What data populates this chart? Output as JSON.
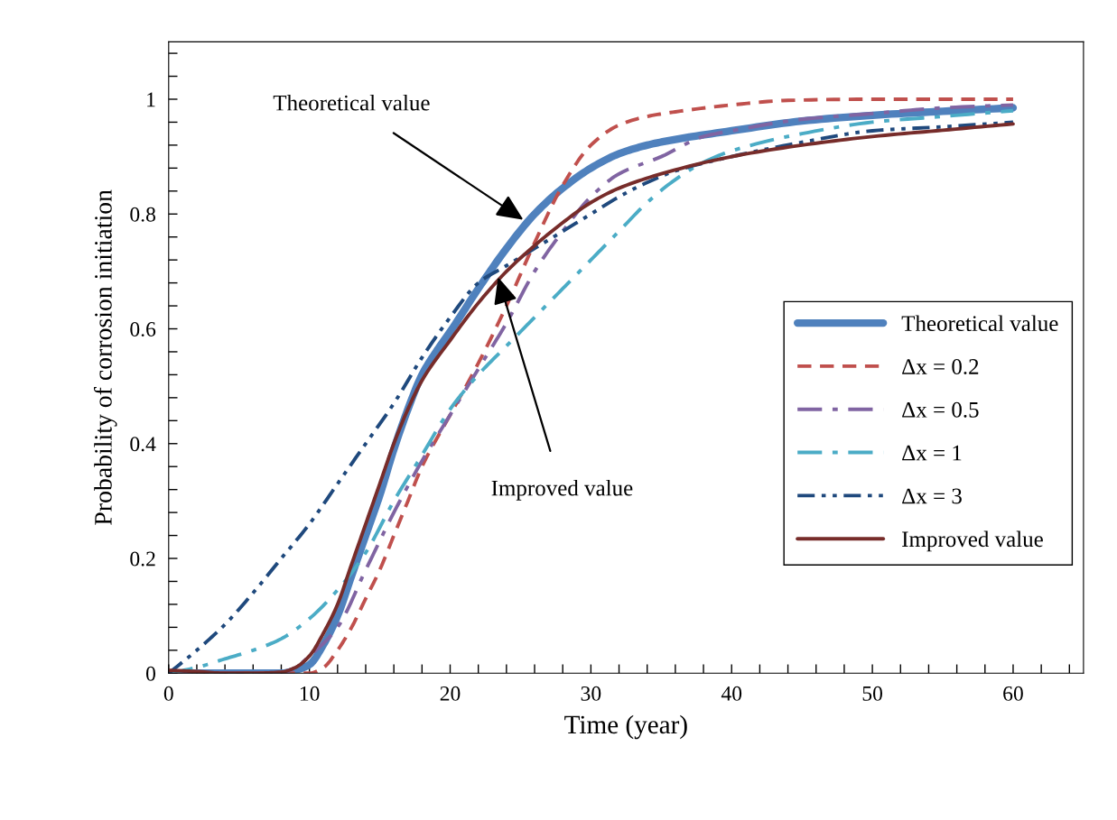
{
  "chart_data": {
    "type": "line",
    "xlabel": "Time (year)",
    "ylabel": "Probability of corrosion initiation",
    "xlim": [
      0,
      65
    ],
    "xticks": [
      0,
      10,
      20,
      30,
      40,
      50,
      60
    ],
    "ylim": [
      0,
      1.1
    ],
    "yticks": [
      0,
      0.2,
      0.4,
      0.6,
      0.8,
      1
    ],
    "grid": false,
    "legend": "right",
    "marker": "none",
    "series": [
      {
        "name": "Theoretical value",
        "color": "#4f81bd",
        "line_style": "solid",
        "x": [
          0,
          4,
          8,
          9,
          10,
          11,
          12,
          13,
          14,
          15,
          16,
          17,
          18,
          19,
          20,
          22,
          24,
          26,
          28,
          30,
          32,
          34,
          36,
          40,
          45,
          50,
          55,
          60
        ],
        "values": [
          0,
          0,
          0,
          0.005,
          0.015,
          0.05,
          0.1,
          0.17,
          0.24,
          0.31,
          0.39,
          0.46,
          0.52,
          0.56,
          0.595,
          0.67,
          0.74,
          0.8,
          0.845,
          0.88,
          0.905,
          0.92,
          0.93,
          0.945,
          0.962,
          0.972,
          0.979,
          0.985
        ]
      },
      {
        "name": "Δx = 0.2",
        "color": "#c0504d",
        "line_style": "dashed",
        "x": [
          0,
          8,
          10,
          11,
          12,
          13,
          14,
          15,
          16,
          17,
          18,
          20,
          22,
          24,
          26,
          28,
          30,
          32,
          34,
          36,
          40,
          44,
          50,
          60
        ],
        "values": [
          0,
          0,
          0,
          0.01,
          0.04,
          0.08,
          0.13,
          0.18,
          0.24,
          0.3,
          0.36,
          0.45,
          0.54,
          0.64,
          0.75,
          0.85,
          0.92,
          0.955,
          0.97,
          0.978,
          0.99,
          0.998,
          1,
          1
        ]
      },
      {
        "name": "Δx = 0.5",
        "color": "#8064a2",
        "line_style": "dashdot",
        "x": [
          0,
          4,
          8,
          9,
          10,
          12,
          14,
          16,
          18,
          20,
          22,
          24,
          26,
          28,
          30,
          32,
          35,
          38,
          40,
          45,
          50,
          55,
          60
        ],
        "values": [
          0,
          0,
          0,
          0.01,
          0.03,
          0.08,
          0.18,
          0.28,
          0.37,
          0.45,
          0.53,
          0.61,
          0.7,
          0.77,
          0.83,
          0.87,
          0.9,
          0.935,
          0.945,
          0.965,
          0.975,
          0.985,
          0.99
        ]
      },
      {
        "name": "Δx = 1",
        "color": "#4bacc6",
        "line_style": "dashdot",
        "x": [
          0,
          2,
          4,
          6,
          8,
          10,
          12,
          14,
          16,
          18,
          20,
          22,
          24,
          26,
          28,
          30,
          32,
          34,
          36,
          38,
          40,
          45,
          50,
          55,
          60
        ],
        "values": [
          0,
          0.01,
          0.025,
          0.04,
          0.06,
          0.095,
          0.145,
          0.21,
          0.3,
          0.38,
          0.46,
          0.52,
          0.57,
          0.62,
          0.67,
          0.72,
          0.77,
          0.82,
          0.86,
          0.89,
          0.91,
          0.94,
          0.96,
          0.97,
          0.98
        ]
      },
      {
        "name": "Δx = 3",
        "color": "#1f497d",
        "line_style": "dashdotdot",
        "x": [
          0,
          2,
          4,
          6,
          8,
          10,
          12,
          14,
          16,
          18,
          20,
          22,
          24,
          26,
          28,
          30,
          32,
          34,
          36,
          40,
          45,
          50,
          55,
          60
        ],
        "values": [
          0,
          0.04,
          0.085,
          0.14,
          0.2,
          0.26,
          0.33,
          0.4,
          0.47,
          0.55,
          0.62,
          0.68,
          0.71,
          0.74,
          0.77,
          0.8,
          0.83,
          0.855,
          0.875,
          0.9,
          0.925,
          0.945,
          0.952,
          0.96
        ]
      },
      {
        "name": "Improved value",
        "color": "#772c2a",
        "line_style": "solid",
        "x": [
          0,
          2,
          4,
          6,
          8,
          9,
          10,
          11,
          12,
          13,
          14,
          15,
          16,
          17,
          18,
          20,
          22,
          24,
          26,
          28,
          30,
          32,
          35,
          40,
          45,
          50,
          55,
          60
        ],
        "values": [
          0.005,
          0.003,
          0,
          0,
          0.002,
          0.01,
          0.03,
          0.07,
          0.12,
          0.19,
          0.26,
          0.33,
          0.4,
          0.46,
          0.51,
          0.58,
          0.645,
          0.7,
          0.745,
          0.785,
          0.82,
          0.845,
          0.87,
          0.9,
          0.92,
          0.935,
          0.946,
          0.957
        ]
      }
    ],
    "annotations": [
      {
        "text": "Theoretical value",
        "x": 25.2,
        "y": 0.79
      },
      {
        "text": "Improved value",
        "x": 23.4,
        "y": 0.69
      }
    ]
  }
}
